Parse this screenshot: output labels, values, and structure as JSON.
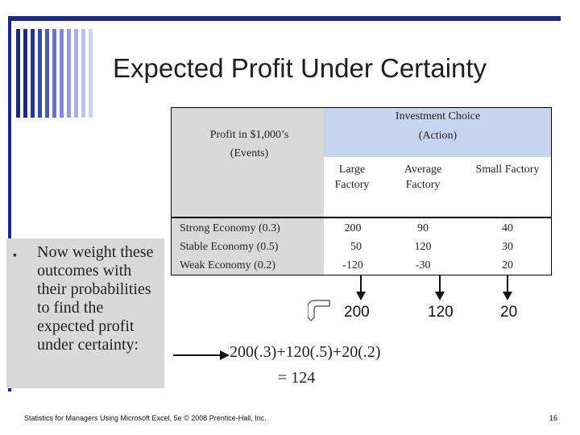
{
  "slide": {
    "title": "Expected Profit Under Certainty",
    "side_text": "Now weight these outcomes with their probabilities to find the expected profit under certainty:",
    "bullet": "▪",
    "footer": "Statistics for Managers Using Microsoft Excel, 5e © 2008 Prentice-Hall, Inc.",
    "page_number": "16"
  },
  "table": {
    "corner_title": "Profit in $1,000’s",
    "corner_sub": "(Events)",
    "choice_title": "Investment Choice",
    "choice_sub": "(Action)",
    "columns": [
      {
        "line1": "Large",
        "line2": "Factory"
      },
      {
        "line1": "Average",
        "line2": "Factory"
      },
      {
        "line1": "Small Factory",
        "line2": ""
      }
    ],
    "rows": [
      {
        "event": "Strong Economy (0.3)",
        "values": [
          "200",
          "90",
          "40"
        ]
      },
      {
        "event": "Stable Economy (0.5)",
        "values": [
          "50",
          "120",
          "30"
        ]
      },
      {
        "event": "Weak Economy (0.2)",
        "values": [
          "-120",
          "-30",
          "20"
        ]
      }
    ]
  },
  "maxima": [
    "200",
    "120",
    "20"
  ],
  "formula": {
    "line1": "200(.3)+120(.5)+20(.2)",
    "line2": "= 124"
  },
  "colors": {
    "accent_navy": "#1e2a78",
    "header_blue": "#c5d5ef",
    "panel_gray": "#d9d9d9"
  }
}
